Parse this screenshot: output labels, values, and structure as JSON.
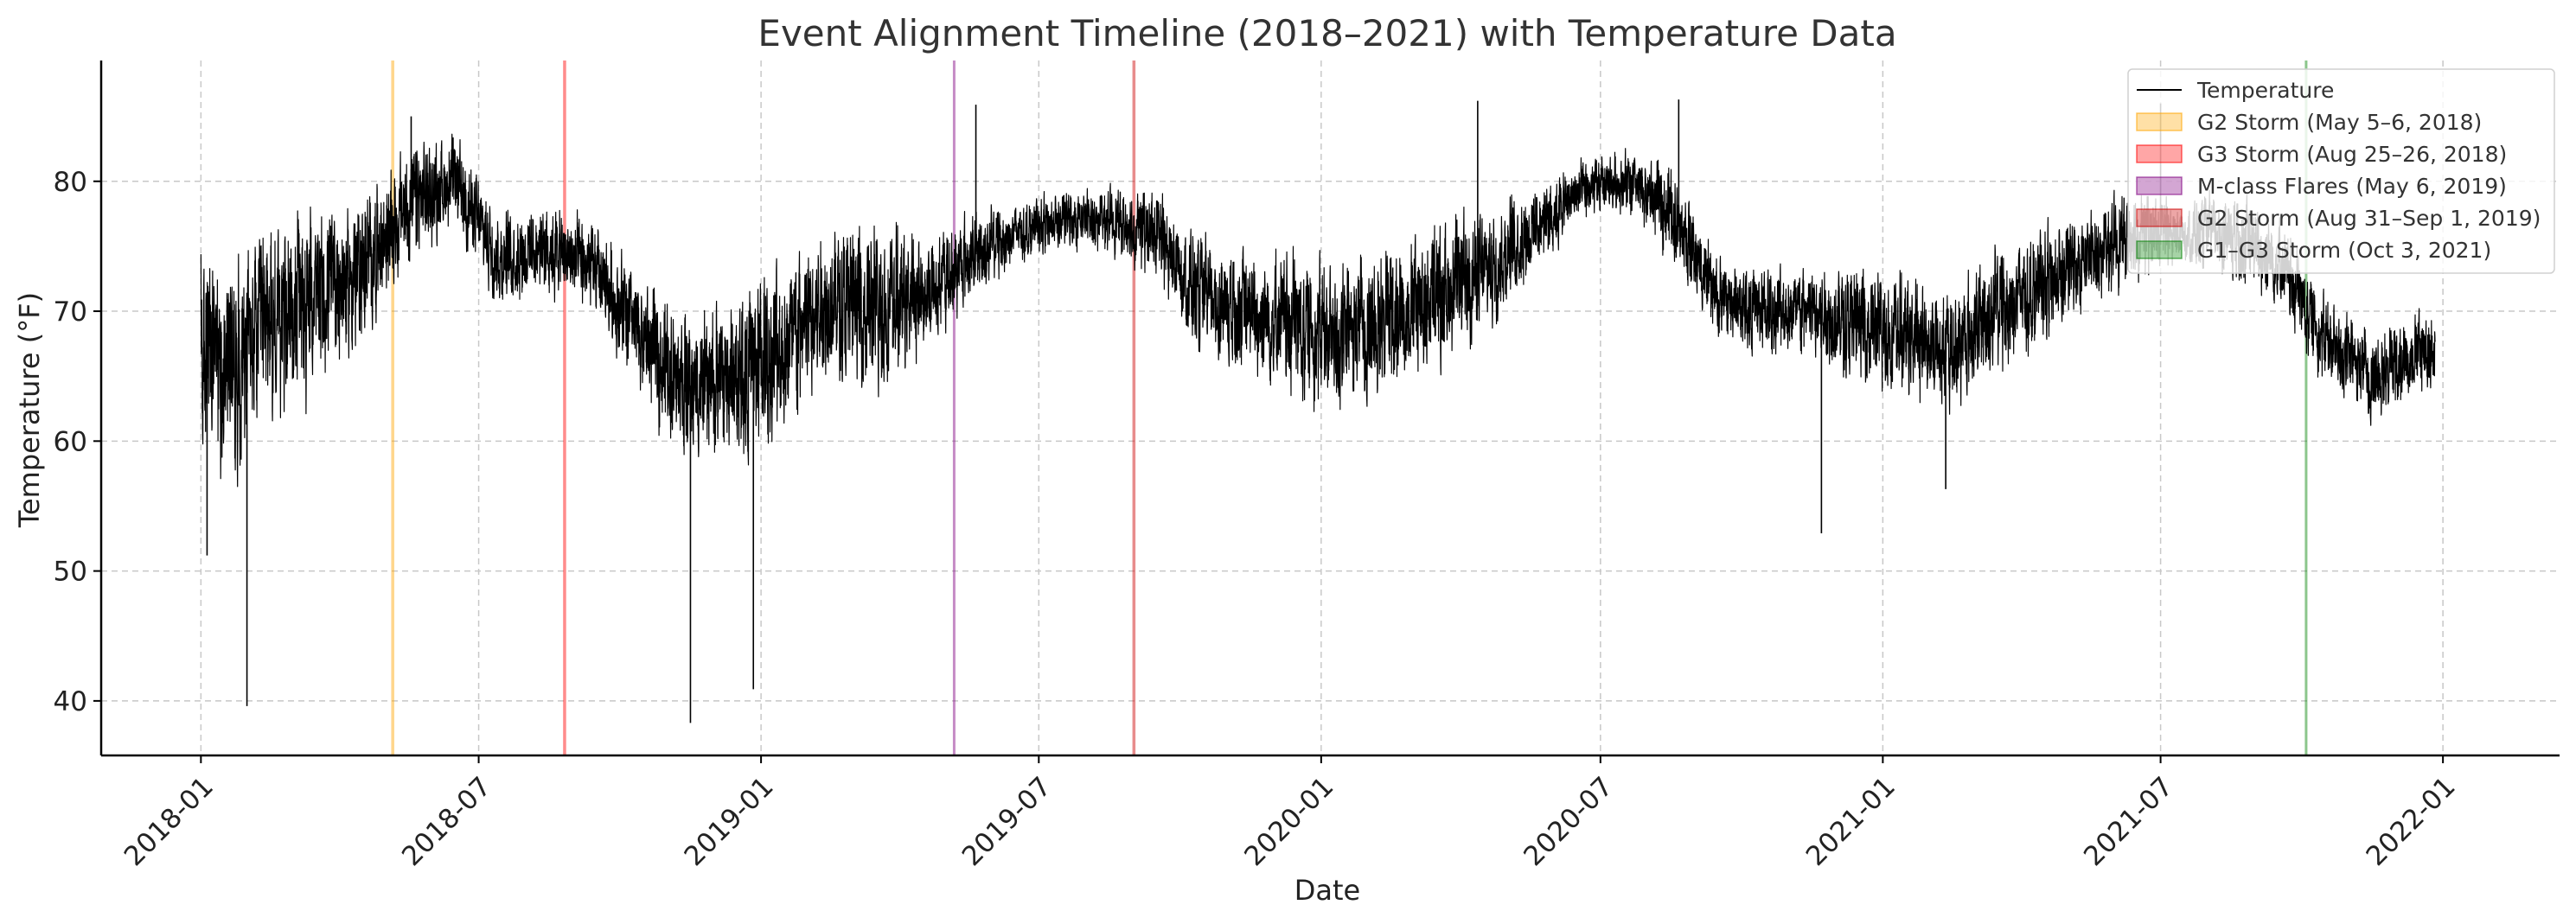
{
  "chart_data": {
    "type": "line",
    "title": "Event Alignment Timeline (2018–2021) with Temperature Data",
    "xlabel": "Date",
    "ylabel": "Temperature (°F)",
    "xlim": [
      "2017-10-28",
      "2022-03-18"
    ],
    "ylim": [
      35.8,
      89.3
    ],
    "grid": true,
    "legend_position": "top-right",
    "x_ticks": [
      {
        "date": "2018-01-01",
        "label": "2018-01"
      },
      {
        "date": "2018-07-01",
        "label": "2018-07"
      },
      {
        "date": "2019-01-01",
        "label": "2019-01"
      },
      {
        "date": "2019-07-01",
        "label": "2019-07"
      },
      {
        "date": "2020-01-01",
        "label": "2020-01"
      },
      {
        "date": "2020-07-01",
        "label": "2020-07"
      },
      {
        "date": "2021-01-01",
        "label": "2021-01"
      },
      {
        "date": "2021-07-01",
        "label": "2021-07"
      },
      {
        "date": "2022-01-01",
        "label": "2022-01"
      }
    ],
    "y_ticks": [
      {
        "value": 40,
        "label": "40"
      },
      {
        "value": 50,
        "label": "50"
      },
      {
        "value": 60,
        "label": "60"
      },
      {
        "value": 70,
        "label": "70"
      },
      {
        "value": 80,
        "label": "80"
      }
    ],
    "series": [
      {
        "name": "Temperature",
        "color": "#000000",
        "x_range": [
          "2018-01-01",
          "2021-12-27"
        ],
        "monthly": [
          {
            "month": "2018-01",
            "mean": 66,
            "spread": 7
          },
          {
            "month": "2018-02",
            "mean": 69,
            "spread": 7
          },
          {
            "month": "2018-03",
            "mean": 71,
            "spread": 6
          },
          {
            "month": "2018-04",
            "mean": 73,
            "spread": 5
          },
          {
            "month": "2018-05",
            "mean": 78,
            "spread": 4
          },
          {
            "month": "2018-06",
            "mean": 80,
            "spread": 3
          },
          {
            "month": "2018-07",
            "mean": 74,
            "spread": 3
          },
          {
            "month": "2018-08",
            "mean": 75,
            "spread": 3
          },
          {
            "month": "2018-09",
            "mean": 73,
            "spread": 3
          },
          {
            "month": "2018-10",
            "mean": 68,
            "spread": 4
          },
          {
            "month": "2018-11",
            "mean": 64,
            "spread": 5
          },
          {
            "month": "2018-12",
            "mean": 65,
            "spread": 6
          },
          {
            "month": "2019-01",
            "mean": 67,
            "spread": 6
          },
          {
            "month": "2019-02",
            "mean": 71,
            "spread": 5
          },
          {
            "month": "2019-03",
            "mean": 70,
            "spread": 6
          },
          {
            "month": "2019-04",
            "mean": 71,
            "spread": 4
          },
          {
            "month": "2019-05",
            "mean": 74,
            "spread": 3
          },
          {
            "month": "2019-06",
            "mean": 76,
            "spread": 2
          },
          {
            "month": "2019-07",
            "mean": 77,
            "spread": 2
          },
          {
            "month": "2019-08",
            "mean": 77,
            "spread": 2
          },
          {
            "month": "2019-09",
            "mean": 76,
            "spread": 3
          },
          {
            "month": "2019-10",
            "mean": 71,
            "spread": 4
          },
          {
            "month": "2019-11",
            "mean": 70,
            "spread": 4
          },
          {
            "month": "2019-12",
            "mean": 69,
            "spread": 5
          },
          {
            "month": "2020-01",
            "mean": 68,
            "spread": 5
          },
          {
            "month": "2020-02",
            "mean": 70,
            "spread": 5
          },
          {
            "month": "2020-03",
            "mean": 71,
            "spread": 5
          },
          {
            "month": "2020-04",
            "mean": 73,
            "spread": 4
          },
          {
            "month": "2020-05",
            "mean": 76,
            "spread": 3
          },
          {
            "month": "2020-06",
            "mean": 79,
            "spread": 2
          },
          {
            "month": "2020-07",
            "mean": 80,
            "spread": 2
          },
          {
            "month": "2020-08",
            "mean": 78,
            "spread": 3
          },
          {
            "month": "2020-09",
            "mean": 71,
            "spread": 3
          },
          {
            "month": "2020-10",
            "mean": 70,
            "spread": 3
          },
          {
            "month": "2020-11",
            "mean": 70,
            "spread": 3
          },
          {
            "month": "2020-12",
            "mean": 69,
            "spread": 4
          },
          {
            "month": "2021-01",
            "mean": 68,
            "spread": 4
          },
          {
            "month": "2021-02",
            "mean": 67,
            "spread": 4
          },
          {
            "month": "2021-03",
            "mean": 70,
            "spread": 4
          },
          {
            "month": "2021-04",
            "mean": 72,
            "spread": 4
          },
          {
            "month": "2021-05",
            "mean": 74,
            "spread": 3
          },
          {
            "month": "2021-06",
            "mean": 76,
            "spread": 3
          },
          {
            "month": "2021-07",
            "mean": 76,
            "spread": 2
          },
          {
            "month": "2021-08",
            "mean": 76,
            "spread": 3
          },
          {
            "month": "2021-09",
            "mean": 74,
            "spread": 3
          },
          {
            "month": "2021-10",
            "mean": 68,
            "spread": 3
          },
          {
            "month": "2021-11",
            "mean": 65,
            "spread": 3
          },
          {
            "month": "2021-12",
            "mean": 67,
            "spread": 3
          }
        ],
        "notable_points": [
          {
            "x": "2018-01-05",
            "y": 51.2
          },
          {
            "x": "2018-01-31",
            "y": 39.6
          },
          {
            "x": "2018-05-18",
            "y": 85.0
          },
          {
            "x": "2018-11-16",
            "y": 38.3
          },
          {
            "x": "2018-12-27",
            "y": 40.9
          },
          {
            "x": "2019-05-21",
            "y": 85.9
          },
          {
            "x": "2020-04-12",
            "y": 86.2
          },
          {
            "x": "2020-08-21",
            "y": 86.3
          },
          {
            "x": "2020-11-22",
            "y": 52.9
          },
          {
            "x": "2021-02-11",
            "y": 56.3
          },
          {
            "x": "2021-07-01",
            "y": 86.0
          }
        ]
      }
    ],
    "events": [
      {
        "label": "G2 Storm (May 5–6, 2018)",
        "start": "2018-05-05",
        "end": "2018-05-06",
        "color": "#ffa500"
      },
      {
        "label": "G3 Storm (Aug 25–26, 2018)",
        "start": "2018-08-25",
        "end": "2018-08-26",
        "color": "#ff0000"
      },
      {
        "label": "M-class Flares (May 6, 2019)",
        "start": "2019-05-06",
        "end": "2019-05-06",
        "color": "#800080"
      },
      {
        "label": "G2 Storm (Aug 31–Sep 1, 2019)",
        "start": "2019-08-31",
        "end": "2019-09-01",
        "color": "#cc0000"
      },
      {
        "label": "G1–G3 Storm (Oct 3, 2021)",
        "start": "2021-10-03",
        "end": "2021-10-03",
        "color": "#008000"
      }
    ]
  }
}
